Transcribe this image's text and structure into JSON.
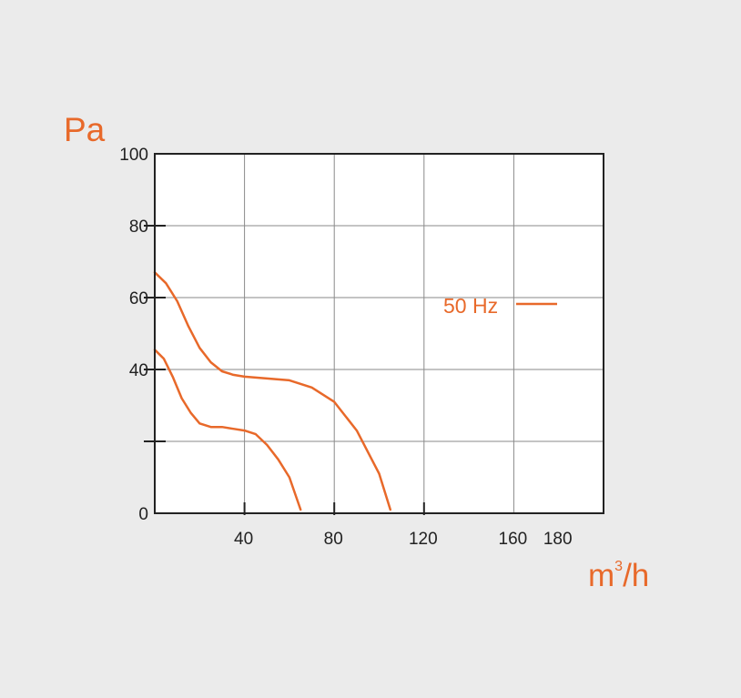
{
  "chart_data": {
    "type": "line",
    "ylabel": "Pa",
    "xlabel_base": "m",
    "xlabel_sup": "3",
    "xlabel_tail": "/h",
    "xlim": [
      0,
      200
    ],
    "ylim": [
      0,
      100
    ],
    "x_ticks": [
      40,
      80,
      120,
      160,
      180
    ],
    "y_ticks": [
      0,
      40,
      60,
      80,
      100
    ],
    "grid": true,
    "legend": {
      "text": "50 Hz",
      "placement": "right-middle"
    },
    "colors": {
      "series": "#e8692a",
      "axis": "#222222",
      "grid": "#8a8a8a",
      "background": "#ebebeb",
      "plot": "#ffffff"
    },
    "series": [
      {
        "x": [
          0,
          5,
          10,
          15,
          20,
          25,
          30,
          35,
          40,
          50,
          60,
          70,
          80,
          90,
          100,
          105
        ],
        "y": [
          67,
          64,
          59,
          52,
          46,
          42,
          39.5,
          38.5,
          38,
          37.5,
          37,
          35,
          31,
          23,
          11,
          1
        ]
      },
      {
        "x": [
          0,
          4,
          8,
          12,
          16,
          20,
          25,
          30,
          35,
          40,
          45,
          50,
          55,
          60,
          65
        ],
        "y": [
          45.5,
          43,
          38,
          32,
          28,
          25,
          24,
          24,
          23.5,
          23,
          22,
          19,
          15,
          10,
          1
        ]
      }
    ]
  }
}
